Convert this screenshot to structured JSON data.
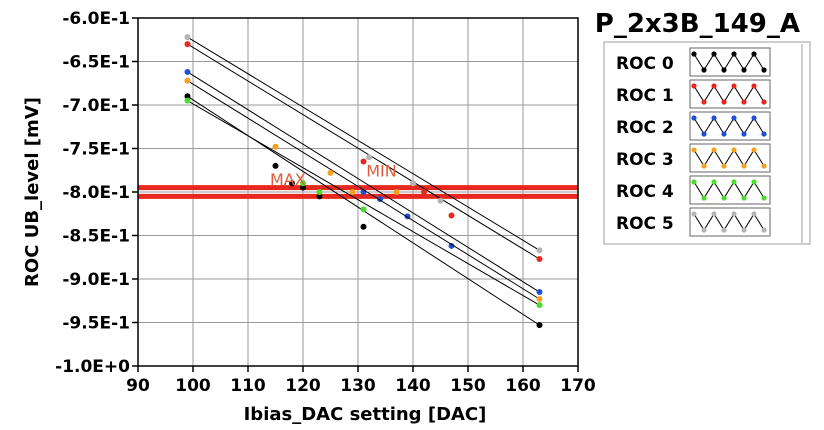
{
  "chart_data": {
    "type": "line",
    "title": "P_2x3B_149_A",
    "xlabel": "Ibias_DAC setting [DAC]",
    "ylabel": "ROC UB_level [mV]",
    "xlim": [
      90,
      170
    ],
    "ylim": [
      -1.0,
      -0.6
    ],
    "x_ticks": [
      90,
      100,
      110,
      120,
      130,
      140,
      150,
      160,
      170
    ],
    "x_tick_labels": [
      "90",
      "100",
      "110",
      "120",
      "130",
      "140",
      "150",
      "160",
      "170"
    ],
    "y_ticks": [
      -0.6,
      -0.65,
      -0.7,
      -0.75,
      -0.8,
      -0.85,
      -0.9,
      -0.95,
      -1.0
    ],
    "y_tick_labels": [
      "-6.0E-1",
      "-6.5E-1",
      "-7.0E-1",
      "-7.5E-1",
      "-8.0E-1",
      "-8.5E-1",
      "-9.0E-1",
      "-9.5E-1",
      "-1.0E+0"
    ],
    "grid": true,
    "legend_position": "right",
    "hlines": [
      {
        "label": "MIN",
        "y": -0.795,
        "color": "#e8281e"
      },
      {
        "label": "MAX",
        "y": -0.805,
        "color": "#e8281e"
      }
    ],
    "annotations": [
      {
        "text": "MAX",
        "x": 114,
        "y": -0.792
      },
      {
        "text": "MIN",
        "x": 131.5,
        "y": -0.782
      }
    ],
    "series": [
      {
        "name": "ROC 0",
        "color": "#000000",
        "points": [
          [
            99,
            -0.69
          ],
          [
            115,
            -0.77
          ],
          [
            118,
            -0.79
          ],
          [
            120,
            -0.795
          ],
          [
            123,
            -0.805
          ],
          [
            131,
            -0.84
          ],
          [
            163,
            -0.953
          ]
        ]
      },
      {
        "name": "ROC 1",
        "color": "#e8281e",
        "points": [
          [
            99,
            -0.63
          ],
          [
            131,
            -0.765
          ],
          [
            140,
            -0.79
          ],
          [
            142,
            -0.8
          ],
          [
            147,
            -0.827
          ],
          [
            163,
            -0.877
          ]
        ]
      },
      {
        "name": "ROC 2",
        "color": "#1f4fd6",
        "points": [
          [
            99,
            -0.662
          ],
          [
            131,
            -0.8
          ],
          [
            134,
            -0.808
          ],
          [
            139,
            -0.828
          ],
          [
            147,
            -0.862
          ],
          [
            163,
            -0.915
          ]
        ]
      },
      {
        "name": "ROC 3",
        "color": "#f5a01e",
        "points": [
          [
            99,
            -0.672
          ],
          [
            115,
            -0.748
          ],
          [
            125,
            -0.778
          ],
          [
            129,
            -0.8
          ],
          [
            137,
            -0.8
          ],
          [
            163,
            -0.923
          ]
        ]
      },
      {
        "name": "ROC 4",
        "color": "#4cdd2c",
        "points": [
          [
            99,
            -0.695
          ],
          [
            120,
            -0.79
          ],
          [
            123,
            -0.8
          ],
          [
            131,
            -0.82
          ],
          [
            163,
            -0.93
          ]
        ]
      },
      {
        "name": "ROC 5",
        "color": "#b4b4b4",
        "points": [
          [
            99,
            -0.622
          ],
          [
            132,
            -0.76
          ],
          [
            140,
            -0.79
          ],
          [
            145,
            -0.81
          ],
          [
            163,
            -0.867
          ]
        ]
      }
    ]
  }
}
